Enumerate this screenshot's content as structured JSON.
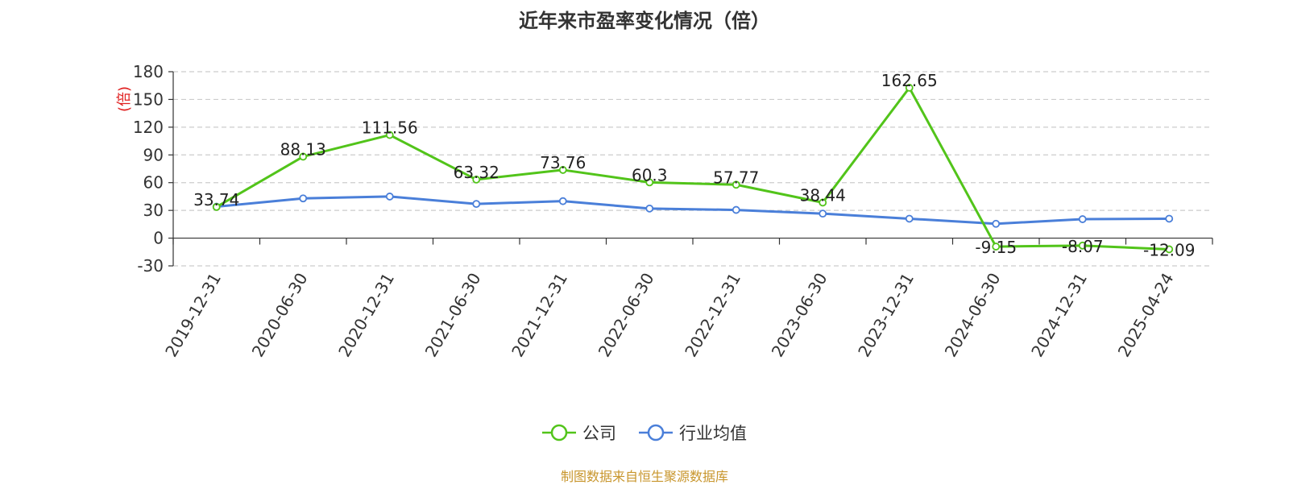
{
  "chart_data": {
    "type": "line",
    "title": "近年来市盈率变化情况（倍）",
    "ylabel": "(倍)",
    "ylim": [
      -30,
      180
    ],
    "yticks": [
      180,
      150,
      120,
      90,
      60,
      30,
      0,
      -30
    ],
    "categories": [
      "2019-12-31",
      "2020-06-30",
      "2020-12-31",
      "2021-06-30",
      "2021-12-31",
      "2022-06-30",
      "2022-12-31",
      "2023-06-30",
      "2023-12-31",
      "2024-06-30",
      "2024-12-31",
      "2025-04-24"
    ],
    "series": [
      {
        "name": "公司",
        "color": "#52c41a",
        "values": [
          33.74,
          88.13,
          111.56,
          63.32,
          73.76,
          60.3,
          57.77,
          38.44,
          162.65,
          -9.15,
          -8.07,
          -12.09
        ],
        "labels": [
          "33.74",
          "88.13",
          "111.56",
          "63.32",
          "73.76",
          "60.3",
          "57.77",
          "38.44",
          "162.65",
          "-9.15",
          "-8.07",
          "-12.09"
        ]
      },
      {
        "name": "行业均值",
        "color": "#4a7fd9",
        "values": [
          34,
          43,
          45,
          37,
          40,
          32,
          30.5,
          26.5,
          21,
          15.5,
          20.5,
          21
        ]
      }
    ],
    "grid": true,
    "legend_position": "bottom-center"
  },
  "source_text": "制图数据来自恒生聚源数据库",
  "colors": {
    "title": "#333333",
    "ylabel": "#e02020",
    "source": "#c8962d",
    "grid": "#cccccc",
    "axis": "#333333"
  }
}
